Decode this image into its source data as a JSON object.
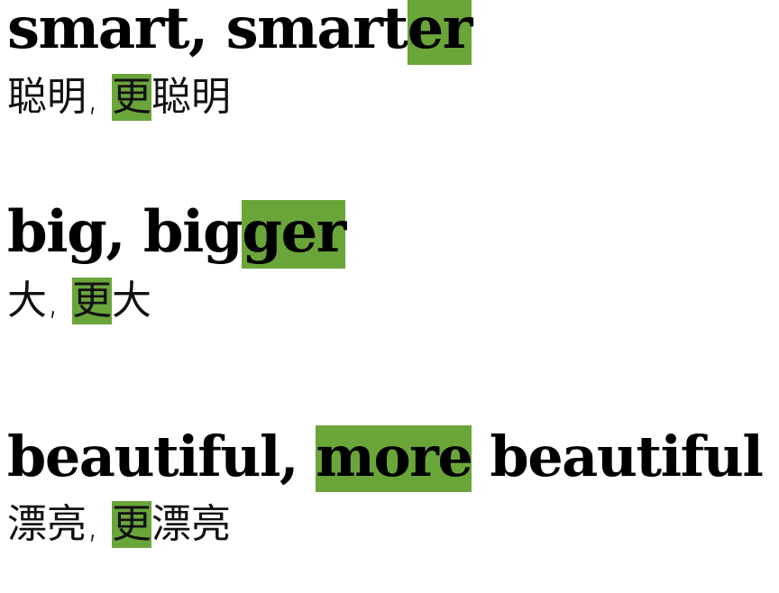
{
  "colors": {
    "highlight": "#6aa53a",
    "text": "#000000",
    "background": "#ffffff"
  },
  "rows": [
    {
      "en_prefix": "smart, smart",
      "en_highlight": "er",
      "en_suffix": "",
      "zh_prefix": "聪明, ",
      "zh_highlight": "更",
      "zh_suffix": "聪明"
    },
    {
      "en_prefix": "big, big",
      "en_highlight": "ger",
      "en_suffix": "",
      "zh_prefix": "大, ",
      "zh_highlight": "更",
      "zh_suffix": "大"
    },
    {
      "en_prefix": "beautiful, ",
      "en_highlight": "more",
      "en_suffix": " beautiful",
      "zh_prefix": "漂亮, ",
      "zh_highlight": "更",
      "zh_suffix": "漂亮"
    }
  ]
}
